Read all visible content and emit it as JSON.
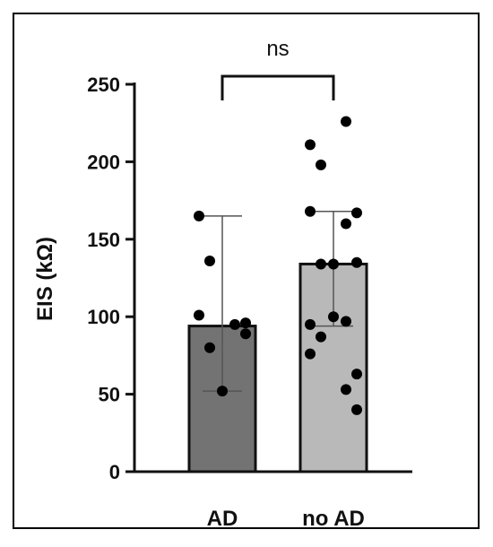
{
  "chart_data": {
    "type": "bar",
    "title": "",
    "xlabel": "",
    "ylabel": "EIS (kΩ)",
    "ylim": [
      0,
      250
    ],
    "yticks": [
      0,
      50,
      100,
      150,
      200,
      250
    ],
    "ytick_labels": [
      "0",
      "50",
      "100",
      "150",
      "200",
      "250"
    ],
    "categories": [
      "AD",
      "no AD"
    ],
    "bars": [
      {
        "category": "AD",
        "value": 94,
        "error_low": 52,
        "error_high": 165,
        "color": "#737373",
        "points": [
          165,
          136,
          101,
          96,
          95,
          89,
          80,
          52
        ]
      },
      {
        "category": "no AD",
        "value": 134,
        "error_low": 94,
        "error_high": 168,
        "color": "#b9b9b9",
        "points": [
          226,
          211,
          198,
          168,
          167,
          160,
          135,
          134,
          134,
          100,
          97,
          95,
          87,
          76,
          63,
          53,
          40
        ]
      }
    ],
    "significance": {
      "pair": [
        "AD",
        "no AD"
      ],
      "label": "ns"
    },
    "grid": false,
    "legend": "none"
  }
}
